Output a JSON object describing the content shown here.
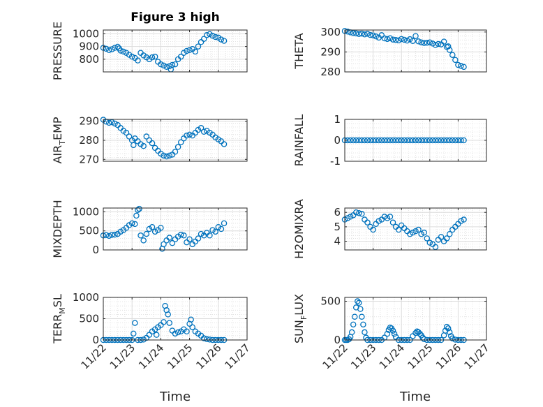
{
  "figure": {
    "title": "Figure 3 high",
    "xlabel": "Time"
  },
  "colors": {
    "marker": "#0072bd",
    "axis": "#262626",
    "grid": "#dcdcdc",
    "bg": "#ffffff"
  },
  "chart_data": [
    {
      "type": "scatter",
      "id": "pressure",
      "title": "Figure 3 high",
      "ylabel": "PRESSURE",
      "ylabel_sub": "",
      "xlim": [
        0,
        5
      ],
      "ylim": [
        700,
        1030
      ],
      "yticks": [
        800,
        900,
        1000
      ],
      "ytick_labels": [
        "800",
        "900",
        "1000"
      ],
      "xtick_labels": [],
      "grid": true,
      "minor_grid": true,
      "x": [
        0.0,
        0.1,
        0.2,
        0.3,
        0.4,
        0.5,
        0.55,
        0.6,
        0.7,
        0.8,
        0.9,
        1.0,
        1.1,
        1.2,
        1.3,
        1.4,
        1.5,
        1.6,
        1.7,
        1.8,
        1.9,
        2.0,
        2.1,
        2.2,
        2.3,
        2.35,
        2.4,
        2.5,
        2.6,
        2.7,
        2.8,
        2.9,
        3.0,
        3.1,
        3.2,
        3.3,
        3.4,
        3.5,
        3.6,
        3.7,
        3.8,
        3.9,
        4.0,
        4.1,
        4.2
      ],
      "y": [
        890,
        882,
        872,
        878,
        890,
        898,
        885,
        868,
        860,
        850,
        835,
        820,
        810,
        790,
        850,
        830,
        815,
        800,
        815,
        820,
        780,
        760,
        750,
        740,
        745,
        720,
        755,
        760,
        800,
        820,
        850,
        865,
        872,
        880,
        860,
        900,
        935,
        960,
        990,
        998,
        985,
        975,
        970,
        955,
        945
      ]
    },
    {
      "type": "scatter",
      "id": "theta",
      "title": "",
      "ylabel": "THETA",
      "ylabel_sub": "",
      "xlim": [
        0,
        5
      ],
      "ylim": [
        280,
        301
      ],
      "yticks": [
        280,
        290,
        300
      ],
      "ytick_labels": [
        "280",
        "290",
        "300"
      ],
      "xtick_labels": [],
      "grid": true,
      "minor_grid": true,
      "x": [
        0.0,
        0.1,
        0.2,
        0.3,
        0.4,
        0.5,
        0.6,
        0.7,
        0.8,
        0.9,
        1.0,
        1.1,
        1.2,
        1.3,
        1.4,
        1.5,
        1.6,
        1.7,
        1.8,
        1.9,
        2.0,
        2.1,
        2.2,
        2.3,
        2.4,
        2.5,
        2.6,
        2.7,
        2.8,
        2.9,
        3.0,
        3.1,
        3.2,
        3.3,
        3.4,
        3.5,
        3.6,
        3.65,
        3.7,
        3.8,
        3.9,
        4.0,
        4.1,
        4.2
      ],
      "y": [
        300.5,
        300.2,
        299.8,
        299.5,
        299.3,
        299.0,
        299.2,
        298.8,
        299.1,
        298.5,
        298.3,
        297.8,
        297.2,
        298.4,
        296.8,
        296.5,
        296.9,
        296.2,
        296.0,
        295.8,
        296.5,
        296.1,
        295.7,
        296.4,
        295.5,
        298.0,
        295.3,
        294.8,
        294.5,
        294.6,
        294.8,
        294.2,
        293.5,
        294.0,
        293.8,
        295.2,
        292.5,
        292.8,
        291.0,
        288.5,
        286.0,
        283.5,
        283.0,
        282.5
      ]
    },
    {
      "type": "scatter",
      "id": "air_temp",
      "title": "",
      "ylabel": "AIR",
      "ylabel_sub": "T",
      "ylabel_rest": "EMP",
      "xlim": [
        0,
        5
      ],
      "ylim": [
        269,
        291
      ],
      "yticks": [
        270,
        280,
        290
      ],
      "ytick_labels": [
        "270",
        "280",
        "290"
      ],
      "xtick_labels": [],
      "grid": true,
      "minor_grid": true,
      "x": [
        0.0,
        0.1,
        0.2,
        0.3,
        0.4,
        0.5,
        0.6,
        0.7,
        0.8,
        0.9,
        1.0,
        1.05,
        1.1,
        1.2,
        1.3,
        1.4,
        1.5,
        1.6,
        1.7,
        1.8,
        1.9,
        2.0,
        2.1,
        2.2,
        2.3,
        2.4,
        2.5,
        2.6,
        2.7,
        2.8,
        2.9,
        3.0,
        3.1,
        3.2,
        3.3,
        3.4,
        3.5,
        3.6,
        3.7,
        3.8,
        3.9,
        4.0,
        4.1,
        4.2
      ],
      "y": [
        290.8,
        289.8,
        289.2,
        289.5,
        288.8,
        288.0,
        286.5,
        285.0,
        284.0,
        282.0,
        280.0,
        277.5,
        281.0,
        279.5,
        278.0,
        277.0,
        282.0,
        280.0,
        278.5,
        276.0,
        274.5,
        273.0,
        272.0,
        271.5,
        272.0,
        272.5,
        274.0,
        276.5,
        279.0,
        281.0,
        282.5,
        283.0,
        282.5,
        284.0,
        285.5,
        286.5,
        284.5,
        285.0,
        284.0,
        283.0,
        281.5,
        280.5,
        279.5,
        278.0
      ]
    },
    {
      "type": "scatter",
      "id": "rainfall",
      "title": "",
      "ylabel": "RAINFALL",
      "ylabel_sub": "",
      "xlim": [
        0,
        5
      ],
      "ylim": [
        -1,
        1
      ],
      "yticks": [
        -1,
        0,
        1
      ],
      "ytick_labels": [
        "-1",
        "0",
        "1"
      ],
      "xtick_labels": [],
      "grid": true,
      "minor_grid": true,
      "x": [
        0.0,
        0.1,
        0.2,
        0.3,
        0.4,
        0.5,
        0.6,
        0.7,
        0.8,
        0.9,
        1.0,
        1.1,
        1.2,
        1.3,
        1.4,
        1.5,
        1.6,
        1.7,
        1.8,
        1.9,
        2.0,
        2.1,
        2.2,
        2.3,
        2.4,
        2.5,
        2.6,
        2.7,
        2.8,
        2.9,
        3.0,
        3.1,
        3.2,
        3.3,
        3.4,
        3.5,
        3.6,
        3.7,
        3.8,
        3.9,
        4.0,
        4.1,
        4.2
      ],
      "y": [
        0,
        0,
        0,
        0,
        0,
        0,
        0,
        0,
        0,
        0,
        0,
        0,
        0,
        0,
        0,
        0,
        0,
        0,
        0,
        0,
        0,
        0,
        0,
        0,
        0,
        0,
        0,
        0,
        0,
        0,
        0,
        0,
        0,
        0,
        0,
        0,
        0,
        0,
        0,
        0,
        0,
        0,
        0
      ]
    },
    {
      "type": "scatter",
      "id": "mixdepth",
      "title": "",
      "ylabel": "MIXDEPTH",
      "ylabel_sub": "",
      "xlim": [
        0,
        5
      ],
      "ylim": [
        0,
        1100
      ],
      "yticks": [
        0,
        500,
        1000
      ],
      "ytick_labels": [
        "0",
        "500",
        "1000"
      ],
      "xtick_labels": [],
      "grid": true,
      "minor_grid": true,
      "x": [
        0.0,
        0.1,
        0.2,
        0.3,
        0.4,
        0.5,
        0.6,
        0.7,
        0.8,
        0.9,
        1.0,
        1.1,
        1.15,
        1.2,
        1.25,
        1.3,
        1.4,
        1.5,
        1.6,
        1.7,
        1.8,
        1.9,
        2.0,
        2.05,
        2.1,
        2.2,
        2.3,
        2.4,
        2.5,
        2.6,
        2.7,
        2.8,
        2.9,
        3.0,
        3.1,
        3.2,
        3.3,
        3.4,
        3.5,
        3.6,
        3.7,
        3.8,
        3.9,
        4.0,
        4.1,
        4.2
      ],
      "y": [
        380,
        390,
        370,
        395,
        400,
        420,
        480,
        520,
        580,
        650,
        700,
        680,
        900,
        1050,
        1080,
        380,
        250,
        420,
        550,
        600,
        480,
        520,
        580,
        30,
        150,
        250,
        320,
        180,
        280,
        350,
        400,
        380,
        200,
        280,
        150,
        220,
        300,
        420,
        380,
        450,
        380,
        520,
        480,
        600,
        550,
        700
      ]
    },
    {
      "type": "scatter",
      "id": "h2omixra",
      "title": "",
      "ylabel": "H2OMIXRA",
      "ylabel_sub": "",
      "xlim": [
        0,
        5
      ],
      "ylim": [
        3.4,
        6.3
      ],
      "yticks": [
        4,
        5,
        6
      ],
      "ytick_labels": [
        "4",
        "5",
        "6"
      ],
      "xtick_labels": [],
      "grid": true,
      "minor_grid": true,
      "x": [
        0.0,
        0.1,
        0.2,
        0.3,
        0.4,
        0.5,
        0.6,
        0.7,
        0.8,
        0.9,
        1.0,
        1.1,
        1.2,
        1.3,
        1.4,
        1.5,
        1.6,
        1.7,
        1.8,
        1.9,
        2.0,
        2.1,
        2.2,
        2.3,
        2.4,
        2.5,
        2.6,
        2.7,
        2.8,
        2.9,
        3.0,
        3.1,
        3.2,
        3.3,
        3.4,
        3.5,
        3.6,
        3.7,
        3.8,
        3.9,
        4.0,
        4.1,
        4.2
      ],
      "y": [
        5.5,
        5.6,
        5.7,
        5.8,
        6.0,
        5.95,
        5.9,
        5.5,
        5.3,
        5.0,
        4.8,
        5.2,
        5.4,
        5.5,
        5.7,
        5.6,
        5.7,
        5.3,
        5.0,
        4.8,
        5.1,
        4.9,
        4.7,
        4.5,
        4.6,
        4.7,
        4.8,
        4.5,
        4.6,
        4.2,
        3.9,
        3.8,
        3.6,
        4.1,
        4.3,
        4.0,
        4.2,
        4.5,
        4.8,
        5.0,
        5.2,
        5.4,
        5.5
      ]
    },
    {
      "type": "scatter",
      "id": "terr_msl",
      "title": "",
      "ylabel": "TERR",
      "ylabel_sub": "M",
      "ylabel_rest": "SL",
      "xlim": [
        0,
        5
      ],
      "ylim": [
        0,
        1000
      ],
      "yticks": [
        0,
        500,
        1000
      ],
      "ytick_labels": [
        "0",
        "500",
        "1000"
      ],
      "xtick_labels": [
        "11/22",
        "11/23",
        "11/24",
        "11/25",
        "11/26",
        "11/27"
      ],
      "grid": true,
      "minor_grid": true,
      "x": [
        0.0,
        0.1,
        0.2,
        0.3,
        0.4,
        0.5,
        0.6,
        0.7,
        0.8,
        0.9,
        1.0,
        1.05,
        1.1,
        1.2,
        1.3,
        1.4,
        1.5,
        1.6,
        1.7,
        1.8,
        1.85,
        1.9,
        2.0,
        2.1,
        2.15,
        2.2,
        2.25,
        2.3,
        2.4,
        2.5,
        2.6,
        2.7,
        2.8,
        2.9,
        3.0,
        3.05,
        3.1,
        3.2,
        3.3,
        3.4,
        3.5,
        3.6,
        3.7,
        3.8,
        3.9,
        4.0,
        4.1,
        4.2
      ],
      "y": [
        0,
        0,
        0,
        0,
        0,
        0,
        0,
        0,
        0,
        0,
        0,
        150,
        400,
        0,
        0,
        10,
        50,
        120,
        200,
        250,
        120,
        300,
        350,
        420,
        800,
        700,
        600,
        400,
        220,
        150,
        180,
        200,
        250,
        200,
        380,
        480,
        300,
        200,
        150,
        100,
        40,
        20,
        10,
        0,
        0,
        0,
        0,
        0
      ]
    },
    {
      "type": "scatter",
      "id": "sun_flux",
      "title": "",
      "ylabel": "SUN",
      "ylabel_sub": "F",
      "ylabel_rest": "LUX",
      "xlim": [
        0,
        5
      ],
      "ylim": [
        0,
        550
      ],
      "yticks": [
        0,
        500
      ],
      "ytick_labels": [
        "0",
        "500"
      ],
      "xtick_labels": [
        "11/22",
        "11/23",
        "11/24",
        "11/25",
        "11/26",
        "11/27"
      ],
      "grid": true,
      "minor_grid": true,
      "x": [
        0.0,
        0.05,
        0.1,
        0.15,
        0.2,
        0.25,
        0.3,
        0.35,
        0.4,
        0.45,
        0.5,
        0.55,
        0.6,
        0.65,
        0.7,
        0.75,
        0.8,
        0.9,
        1.0,
        1.1,
        1.2,
        1.3,
        1.4,
        1.5,
        1.55,
        1.6,
        1.65,
        1.7,
        1.75,
        1.8,
        1.9,
        2.0,
        2.1,
        2.2,
        2.3,
        2.4,
        2.5,
        2.55,
        2.6,
        2.65,
        2.7,
        2.75,
        2.8,
        2.9,
        3.0,
        3.1,
        3.2,
        3.3,
        3.4,
        3.5,
        3.55,
        3.6,
        3.65,
        3.7,
        3.75,
        3.8,
        3.9,
        4.0,
        4.1,
        4.2
      ],
      "y": [
        0,
        0,
        0,
        10,
        40,
        100,
        200,
        300,
        420,
        500,
        480,
        400,
        300,
        200,
        100,
        30,
        0,
        0,
        0,
        0,
        0,
        0,
        30,
        80,
        130,
        160,
        150,
        120,
        80,
        40,
        0,
        0,
        0,
        0,
        0,
        50,
        90,
        110,
        100,
        80,
        60,
        30,
        10,
        0,
        0,
        0,
        0,
        0,
        0,
        60,
        120,
        170,
        150,
        100,
        50,
        20,
        5,
        0,
        0,
        0
      ]
    }
  ]
}
